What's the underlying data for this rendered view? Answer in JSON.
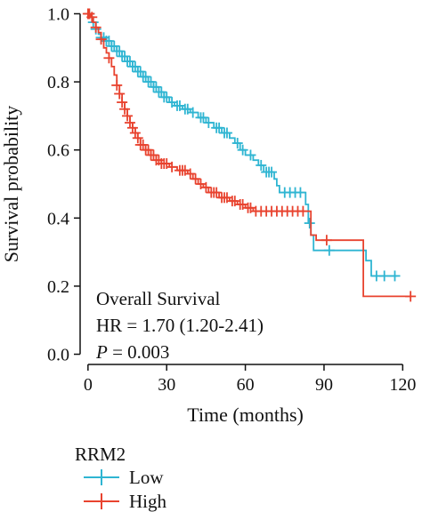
{
  "chart_data": {
    "type": "line",
    "subtype": "kaplan-meier",
    "xlabel": "Time (months)",
    "ylabel": "Survival probability",
    "xlim": [
      -3,
      126
    ],
    "ylim": [
      -0.03,
      1.03
    ],
    "xticks": [
      0,
      30,
      60,
      90,
      120
    ],
    "yticks": [
      0.0,
      0.2,
      0.4,
      0.6,
      0.8,
      1.0
    ],
    "xtick_labels": [
      "0",
      "30",
      "60",
      "90",
      "120"
    ],
    "ytick_labels": [
      "0.0",
      "0.2",
      "0.4",
      "0.6",
      "0.8",
      "1.0"
    ],
    "grid": false,
    "legend": {
      "title": "RRM2",
      "placement": "bottom-left",
      "entries": [
        "Low",
        "High"
      ]
    },
    "annotations": {
      "line1": "Overall Survival",
      "line2": "HR = 1.70 (1.20-2.41)",
      "line3_italic": "P",
      "line3_rest": " = 0.003"
    },
    "series": [
      {
        "name": "Low",
        "color": "#2fb5d2",
        "steps": [
          [
            0,
            1.0
          ],
          [
            1,
            0.99
          ],
          [
            2,
            0.975
          ],
          [
            3,
            0.955
          ],
          [
            4,
            0.94
          ],
          [
            5,
            0.93
          ],
          [
            7,
            0.92
          ],
          [
            9,
            0.905
          ],
          [
            11,
            0.89
          ],
          [
            13,
            0.875
          ],
          [
            15,
            0.86
          ],
          [
            17,
            0.845
          ],
          [
            19,
            0.83
          ],
          [
            21,
            0.815
          ],
          [
            23,
            0.8
          ],
          [
            25,
            0.785
          ],
          [
            27,
            0.77
          ],
          [
            29,
            0.755
          ],
          [
            31,
            0.74
          ],
          [
            33,
            0.73
          ],
          [
            36,
            0.72
          ],
          [
            39,
            0.71
          ],
          [
            42,
            0.695
          ],
          [
            45,
            0.68
          ],
          [
            48,
            0.665
          ],
          [
            51,
            0.65
          ],
          [
            54,
            0.635
          ],
          [
            56,
            0.62
          ],
          [
            58,
            0.6
          ],
          [
            60,
            0.585
          ],
          [
            63,
            0.57
          ],
          [
            65,
            0.555
          ],
          [
            67,
            0.535
          ],
          [
            71,
            0.515
          ],
          [
            72,
            0.495
          ],
          [
            73,
            0.475
          ],
          [
            83,
            0.44
          ],
          [
            84,
            0.385
          ],
          [
            85,
            0.35
          ],
          [
            86,
            0.305
          ],
          [
            106,
            0.275
          ],
          [
            108,
            0.23
          ],
          [
            118,
            0.23
          ]
        ],
        "censors": [
          0.5,
          2,
          3,
          5,
          6,
          7,
          8,
          9,
          10,
          11,
          12,
          13,
          14,
          15,
          16,
          17,
          18,
          19,
          20,
          21,
          22,
          23,
          24,
          25,
          26,
          27,
          28,
          29,
          30,
          32,
          34,
          35,
          37,
          38,
          40,
          43,
          44,
          46,
          49,
          50,
          52,
          53,
          57,
          59,
          62,
          66,
          68,
          69,
          70,
          75,
          77,
          79,
          81,
          84.5,
          92,
          110,
          113,
          117
        ]
      },
      {
        "name": "High",
        "color": "#e8432f",
        "steps": [
          [
            0,
            1.0
          ],
          [
            1,
            0.99
          ],
          [
            2,
            0.975
          ],
          [
            3,
            0.96
          ],
          [
            4,
            0.945
          ],
          [
            5,
            0.925
          ],
          [
            6,
            0.9
          ],
          [
            7,
            0.885
          ],
          [
            8,
            0.87
          ],
          [
            9,
            0.845
          ],
          [
            10,
            0.82
          ],
          [
            11,
            0.79
          ],
          [
            12,
            0.765
          ],
          [
            13,
            0.74
          ],
          [
            14,
            0.72
          ],
          [
            15,
            0.7
          ],
          [
            16,
            0.68
          ],
          [
            17,
            0.665
          ],
          [
            18,
            0.65
          ],
          [
            19,
            0.635
          ],
          [
            20,
            0.615
          ],
          [
            22,
            0.6
          ],
          [
            24,
            0.585
          ],
          [
            26,
            0.57
          ],
          [
            28,
            0.56
          ],
          [
            31,
            0.55
          ],
          [
            34,
            0.54
          ],
          [
            38,
            0.53
          ],
          [
            40,
            0.515
          ],
          [
            42,
            0.5
          ],
          [
            44,
            0.49
          ],
          [
            46,
            0.475
          ],
          [
            50,
            0.46
          ],
          [
            54,
            0.45
          ],
          [
            57,
            0.44
          ],
          [
            60,
            0.43
          ],
          [
            63,
            0.42
          ],
          [
            85,
            0.35
          ],
          [
            87,
            0.335
          ],
          [
            105,
            0.17
          ],
          [
            123,
            0.17
          ]
        ],
        "censors": [
          0,
          0.5,
          1.5,
          3,
          5,
          8,
          11,
          12,
          13,
          14,
          15,
          16,
          17,
          18,
          19,
          20,
          21,
          22,
          23,
          24,
          25,
          26,
          27,
          28,
          29,
          30,
          32,
          35,
          36,
          37,
          39,
          41,
          43,
          45,
          47,
          48,
          49,
          51,
          52,
          53,
          55,
          56,
          58,
          59,
          61,
          62,
          64,
          66,
          68,
          70,
          72,
          74,
          76,
          78,
          80,
          82,
          91,
          123
        ]
      }
    ]
  }
}
